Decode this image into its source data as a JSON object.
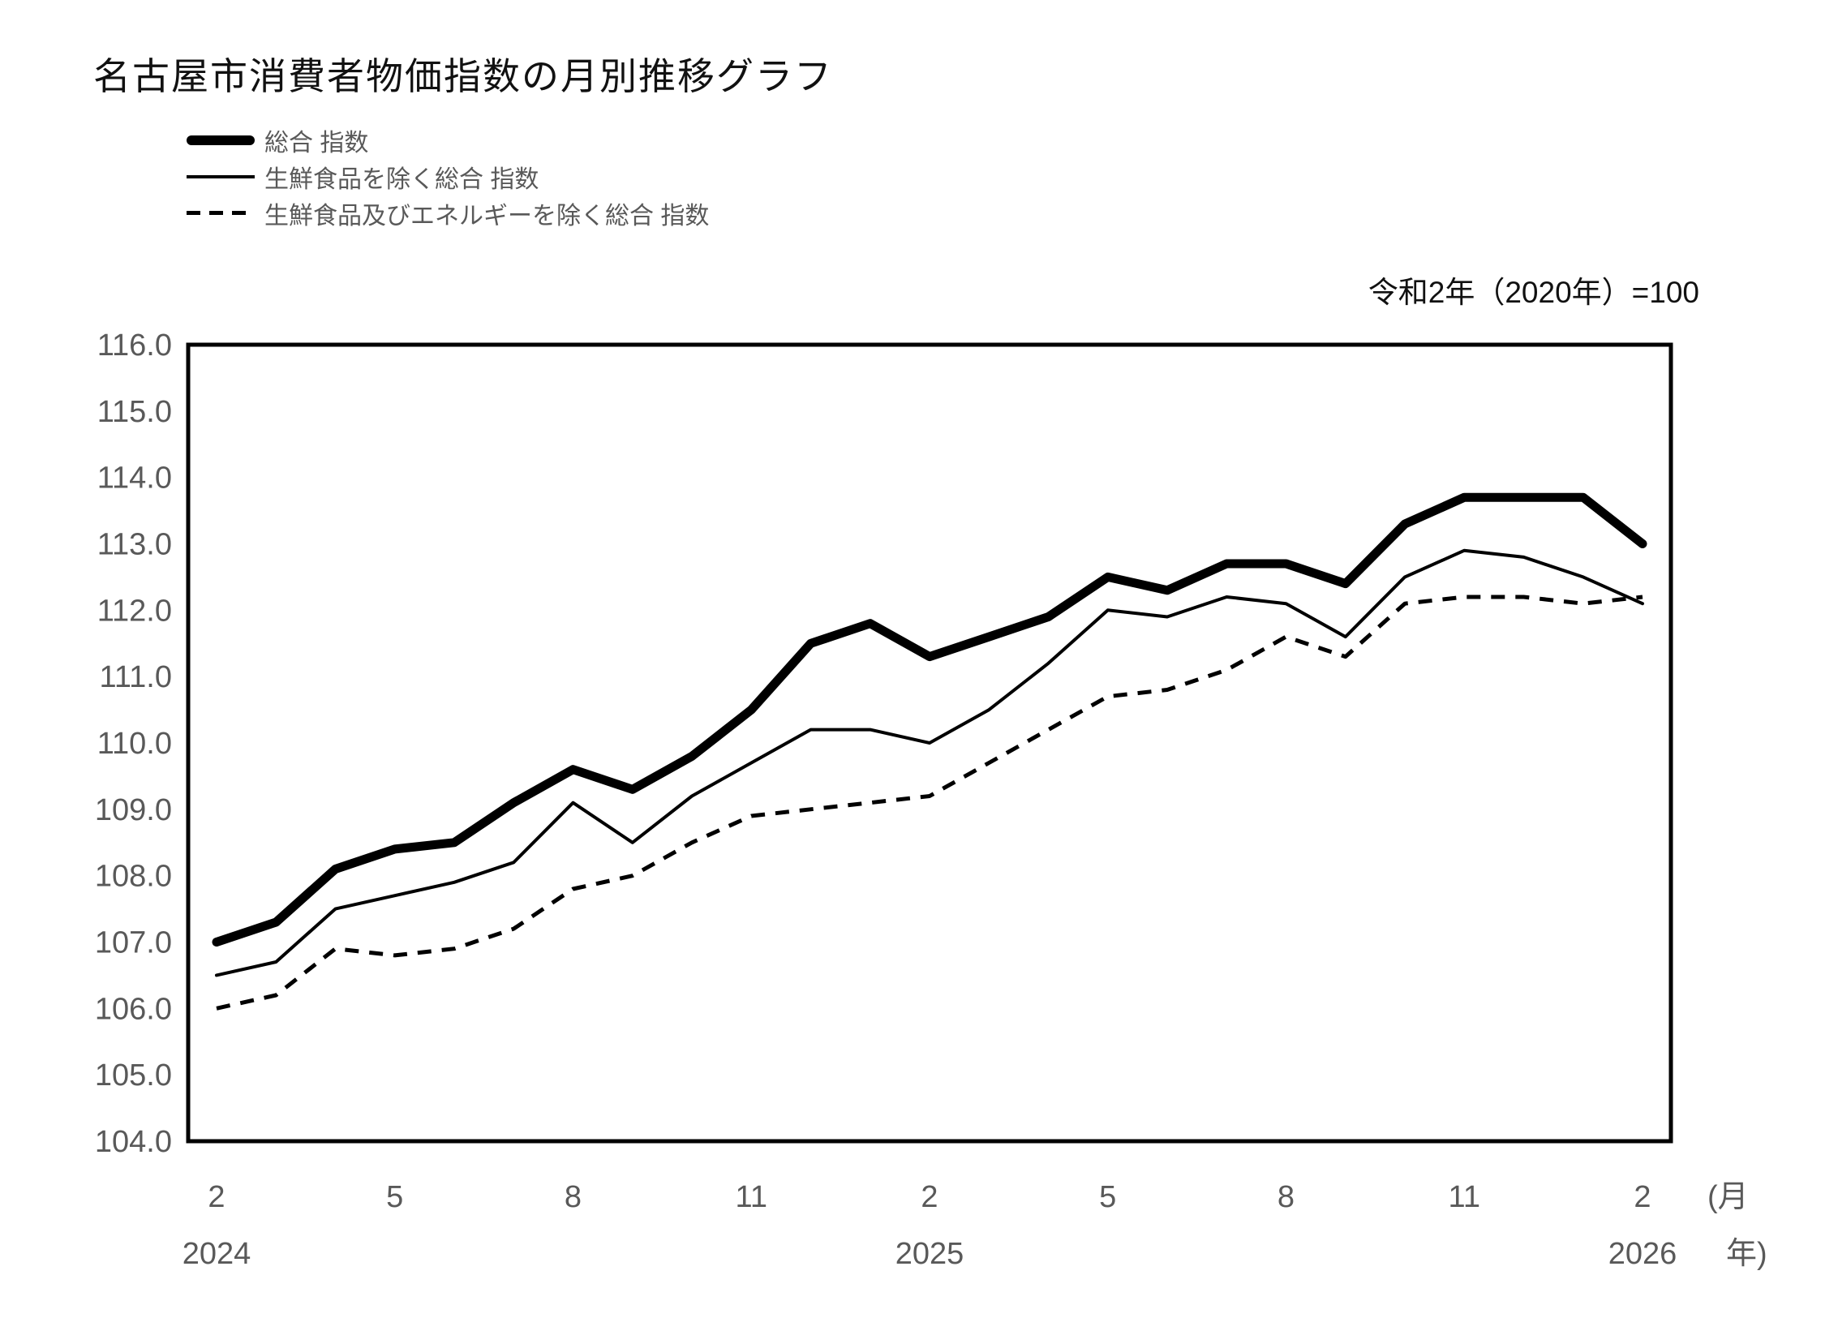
{
  "title": "名古屋市消費者物価指数の月別推移グラフ",
  "note": "令和2年（2020年）=100",
  "legend": {
    "items": [
      {
        "label": "総合 指数",
        "style": "thick-solid"
      },
      {
        "label": "生鮮食品を除く総合 指数",
        "style": "thin-solid"
      },
      {
        "label": "生鮮食品及びエネルギーを除く総合 指数",
        "style": "dashed"
      }
    ]
  },
  "chart_data": {
    "type": "line",
    "title": "名古屋市消費者物価指数の月別推移グラフ",
    "note": "令和2年（2020年）=100",
    "x": [
      "2024-02",
      "2024-03",
      "2024-04",
      "2024-05",
      "2024-06",
      "2024-07",
      "2024-08",
      "2024-09",
      "2024-10",
      "2024-11",
      "2024-12",
      "2025-01",
      "2025-02",
      "2025-03",
      "2025-04",
      "2025-05",
      "2025-06",
      "2025-07",
      "2025-08",
      "2025-09",
      "2025-10",
      "2025-11",
      "2025-12",
      "2026-01",
      "2026-02"
    ],
    "series": [
      {
        "name": "総合 指数",
        "style": "thick-solid",
        "values": [
          107.0,
          107.3,
          108.1,
          108.4,
          108.5,
          109.1,
          109.6,
          109.3,
          109.8,
          110.5,
          111.5,
          111.8,
          111.3,
          111.6,
          111.9,
          112.5,
          112.3,
          112.7,
          112.7,
          112.4,
          113.3,
          113.7,
          113.7,
          113.7,
          113.0
        ]
      },
      {
        "name": "生鮮食品を除く総合 指数",
        "style": "thin-solid",
        "values": [
          106.5,
          106.7,
          107.5,
          107.7,
          107.9,
          108.2,
          109.1,
          108.5,
          109.2,
          109.7,
          110.2,
          110.2,
          110.0,
          110.5,
          111.2,
          112.0,
          111.9,
          112.2,
          112.1,
          111.6,
          112.5,
          112.9,
          112.8,
          112.5,
          112.1
        ]
      },
      {
        "name": "生鮮食品及びエネルギーを除く総合 指数",
        "style": "dashed",
        "values": [
          106.0,
          106.2,
          106.9,
          106.8,
          106.9,
          107.2,
          107.8,
          108.0,
          108.5,
          108.9,
          109.0,
          109.1,
          109.2,
          109.7,
          110.2,
          110.7,
          110.8,
          111.1,
          111.6,
          111.3,
          112.1,
          112.2,
          112.2,
          112.1,
          112.2
        ]
      }
    ],
    "ylim": [
      104.0,
      116.0
    ],
    "y_tick_step": 1.0,
    "y_tick_labels": [
      "104.0",
      "105.0",
      "106.0",
      "107.0",
      "108.0",
      "109.0",
      "110.0",
      "111.0",
      "112.0",
      "113.0",
      "114.0",
      "115.0",
      "116.0"
    ],
    "x_ticks": [
      {
        "index": 0,
        "month": "2",
        "year": "2024"
      },
      {
        "index": 3,
        "month": "5",
        "year": ""
      },
      {
        "index": 6,
        "month": "8",
        "year": ""
      },
      {
        "index": 9,
        "month": "11",
        "year": ""
      },
      {
        "index": 12,
        "month": "2",
        "year": "2025"
      },
      {
        "index": 15,
        "month": "5",
        "year": ""
      },
      {
        "index": 18,
        "month": "8",
        "year": ""
      },
      {
        "index": 21,
        "month": "11",
        "year": ""
      },
      {
        "index": 24,
        "month": "2",
        "year": "2026"
      }
    ],
    "x_axis_unit_line1": "(月",
    "x_axis_unit_line2": "年)",
    "grid": false,
    "legend_position": "top-left",
    "line_color": "#000000"
  }
}
